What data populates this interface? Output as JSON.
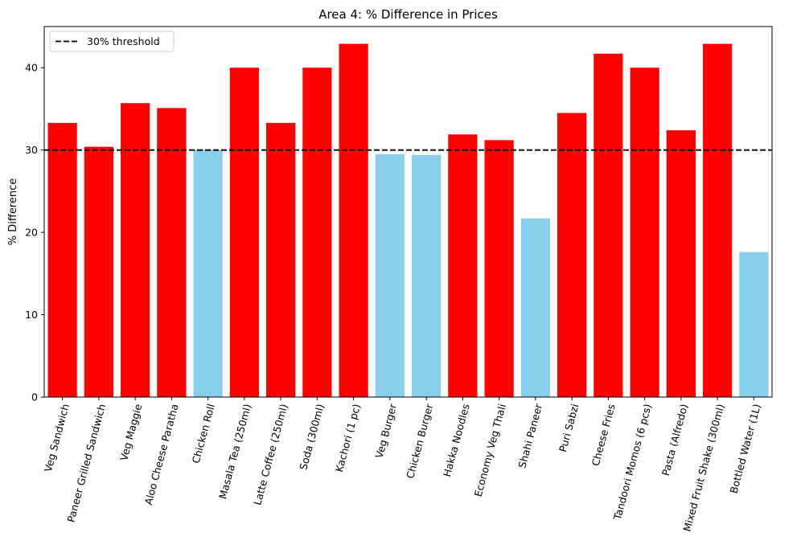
{
  "chart_data": {
    "type": "bar",
    "title": "Area 4: % Difference in Prices",
    "xlabel": "",
    "ylabel": "% Difference",
    "ylim": [
      0,
      45
    ],
    "yticks": [
      0,
      10,
      20,
      30,
      40
    ],
    "grid": false,
    "legend_position": "top-left",
    "categories": [
      "Veg Sandwich",
      "Paneer Grilled Sandwich",
      "Veg Maggie",
      "Aloo Cheese Paratha",
      "Chicken Roll",
      "Masala Tea (250ml)",
      "Latte Coffee (250ml)",
      "Soda (300ml)",
      "Kachori (1 pc)",
      "Veg Burger",
      "Chicken Burger",
      "Hakka Noodles",
      "Economy Veg Thali",
      "Shahi Paneer",
      "Puri Sabzi",
      "Cheese Fries",
      "Tandoori Momos (6 pcs)",
      "Pasta (Alfredo)",
      "Mixed Fruit Shake (300ml)",
      "Bottled Water (1L)"
    ],
    "values": [
      33.3,
      30.4,
      35.7,
      35.1,
      30.0,
      40.0,
      33.3,
      40.0,
      42.9,
      29.5,
      29.4,
      31.9,
      31.2,
      21.7,
      34.5,
      41.7,
      40.0,
      32.4,
      42.9,
      17.6
    ],
    "threshold": {
      "value": 30,
      "label": "30% threshold",
      "color": "#000000",
      "style": "dashed"
    },
    "colors": {
      "above_threshold": "#ff0000",
      "below_threshold": "#87ceeb"
    }
  }
}
